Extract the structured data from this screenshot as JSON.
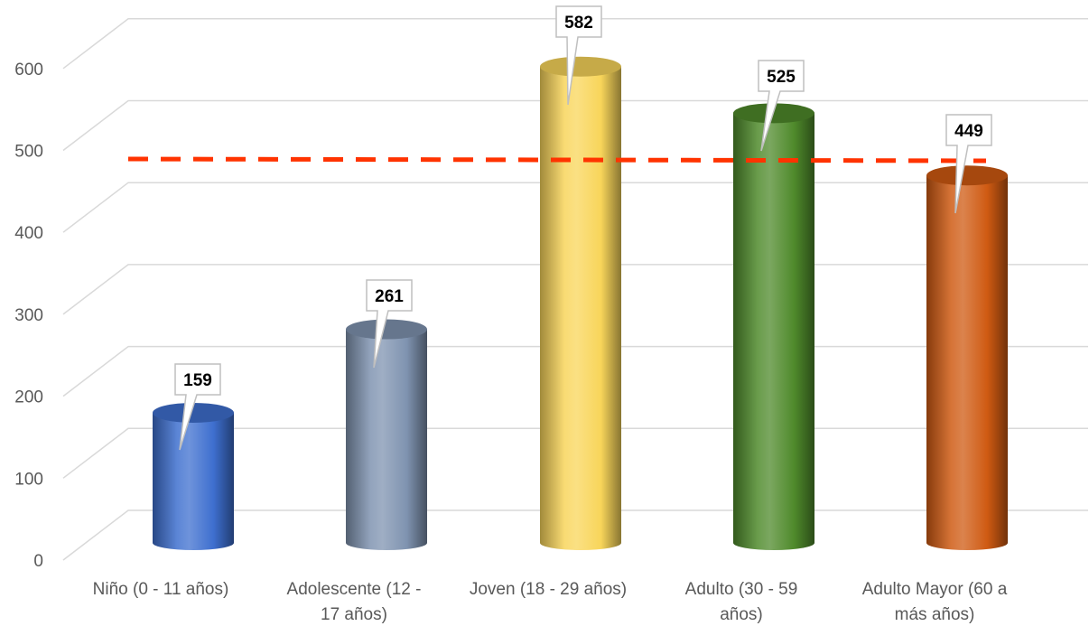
{
  "chart_data": {
    "type": "bar",
    "style": "3d-cylinder",
    "categories": [
      [
        "Niño (0 - 11 años)"
      ],
      [
        "Adolescente (12 -",
        "17 años)"
      ],
      [
        "Joven (18 - 29 años)"
      ],
      [
        "Adulto (30 - 59",
        "años)"
      ],
      [
        "Adulto Mayor (60 a",
        "más años)"
      ]
    ],
    "values": [
      159,
      261,
      582,
      525,
      449
    ],
    "data_labels": [
      "159",
      "261",
      "582",
      "525",
      "449"
    ],
    "colors": [
      "#3e6fcf",
      "#7f93b0",
      "#f8d55a",
      "#4f8a2b",
      "#cf5a12"
    ],
    "ylim": [
      0,
      700
    ],
    "yticks": [
      0,
      100,
      200,
      300,
      400,
      500,
      600
    ],
    "ytick_labels": [
      "0",
      "100",
      "200",
      "300",
      "400",
      "500",
      "600"
    ],
    "reference_line": {
      "value": 476,
      "color": "#ff3300",
      "style": "dashed"
    },
    "grid": true,
    "legend": "none",
    "title": "",
    "xlabel": "",
    "ylabel": ""
  }
}
